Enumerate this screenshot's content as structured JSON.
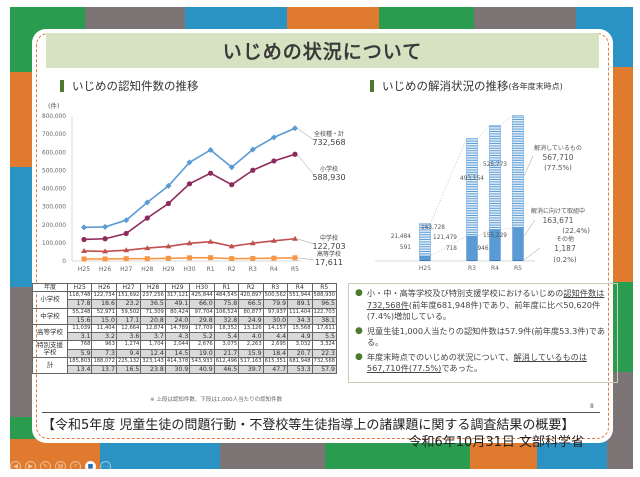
{
  "slide": {
    "title": "いじめの状況について",
    "page_number": "8",
    "colors": {
      "green": "#2a9c4f",
      "orange": "#e07a2e",
      "blue": "#2b93c4",
      "gray": "#7d7575",
      "title_bg": "#d6e3c2",
      "accent_mark": "#4e7a2e"
    }
  },
  "left_section": {
    "title": "いじめの認知件数の推移"
  },
  "right_section": {
    "title": "いじめの解消状況の推移",
    "title_suffix": "(各年度末時点)"
  },
  "chart_data": [
    {
      "type": "line",
      "title": "いじめの認知件数の推移",
      "ylabel": "(件)",
      "ylim": [
        0,
        800000
      ],
      "yticks": [
        "0",
        "100,000",
        "200,000",
        "300,000",
        "400,000",
        "500,000",
        "600,000",
        "700,000",
        "800,000"
      ],
      "ytick_values": [
        0,
        100000,
        200000,
        300000,
        400000,
        500000,
        600000,
        700000,
        800000
      ],
      "categories": [
        "H25",
        "H26",
        "H27",
        "H28",
        "H29",
        "H30",
        "R1",
        "R2",
        "R3",
        "R4",
        "R5"
      ],
      "grid": false,
      "series": [
        {
          "name": "全校種・計",
          "end_label": "732,568",
          "color": "#5b9bd5",
          "marker": "diamond",
          "values": [
            185803,
            188072,
            225132,
            323143,
            414378,
            543933,
            612496,
            517163,
            615351,
            681948,
            732568
          ]
        },
        {
          "name": "小学校",
          "end_label": "588,930",
          "color": "#8e2a5b",
          "marker": "circle",
          "values": [
            118748,
            122734,
            151692,
            237256,
            317121,
            425844,
            484545,
            420897,
            500562,
            551944,
            588930
          ]
        },
        {
          "name": "中学校",
          "end_label": "122,703",
          "color": "#c0504d",
          "marker": "triangle",
          "values": [
            55248,
            52971,
            59502,
            71309,
            80424,
            97704,
            106524,
            80877,
            97937,
            111404,
            122703
          ]
        },
        {
          "name": "高等学校",
          "end_label": "17,611",
          "color": "#f79646",
          "marker": "square",
          "values": [
            11039,
            11404,
            12664,
            12874,
            14789,
            17709,
            18352,
            13126,
            14157,
            15568,
            17611
          ]
        }
      ]
    },
    {
      "type": "bar",
      "title": "いじめの解消状況の推移(各年度末時点)",
      "categories": [
        "H25",
        "R3",
        "R4",
        "R5"
      ],
      "stacked": true,
      "series": [
        {
          "name": "その他",
          "values": [
            591,
            718,
            946,
            1187
          ]
        },
        {
          "name": "解消に向けて取組中",
          "values": [
            21484,
            121479,
            155229,
            163671
          ]
        },
        {
          "name": "解消しているもの",
          "values": [
            163728,
            493154,
            525773,
            567710
          ]
        }
      ],
      "labels": {
        "H25": {
          "resolved": "163,728",
          "in_progress": "21,484",
          "other": "591"
        },
        "R3": {
          "resolved": "493,154",
          "in_progress": "121,479",
          "other": "718"
        },
        "R4": {
          "resolved": "525,773",
          "in_progress": "155,229",
          "other": "946"
        },
        "R5_resolved": {
          "label": "解消しているもの",
          "value": "567,710",
          "pct": "(77.5%)"
        },
        "R5_in_progress": {
          "label": "解消に向けて取組中",
          "value": "163,671",
          "pct": "(22.4%)"
        },
        "R5_other": {
          "label": "その他",
          "value": "1,187",
          "pct": "(0.2%)"
        }
      }
    }
  ],
  "table": {
    "header_label": "年度",
    "years": [
      "H25",
      "H26",
      "H27",
      "H28",
      "H29",
      "H30",
      "R1",
      "R2",
      "R3",
      "R4",
      "R5"
    ],
    "rows": [
      {
        "label": "小学校",
        "counts": [
          "118,748",
          "122,734",
          "151,692",
          "237,256",
          "317,121",
          "425,844",
          "484,545",
          "420,897",
          "500,562",
          "551,944",
          "588,930"
        ],
        "rates": [
          "17.8",
          "18.6",
          "23.2",
          "36.5",
          "49.1",
          "66.0",
          "75.8",
          "66.5",
          "79.9",
          "89.1",
          "96.5"
        ]
      },
      {
        "label": "中学校",
        "counts": [
          "55,248",
          "52,971",
          "59,502",
          "71,309",
          "80,424",
          "97,704",
          "106,524",
          "80,877",
          "97,937",
          "111,404",
          "122,703"
        ],
        "rates": [
          "15.6",
          "15.0",
          "17.1",
          "20.8",
          "24.0",
          "29.8",
          "32.8",
          "24.9",
          "30.0",
          "34.3",
          "38.1"
        ]
      },
      {
        "label": "高等学校",
        "counts": [
          "11,039",
          "11,404",
          "12,664",
          "12,874",
          "14,789",
          "17,709",
          "18,352",
          "13,126",
          "14,157",
          "15,568",
          "17,611"
        ],
        "rates": [
          "3.1",
          "3.2",
          "3.6",
          "3.7",
          "4.3",
          "5.2",
          "5.4",
          "4.0",
          "4.4",
          "4.9",
          "5.5"
        ]
      },
      {
        "label": "特別支援学校",
        "label_line1": "特別支援",
        "label_line2": "学校",
        "counts": [
          "768",
          "963",
          "1,274",
          "1,704",
          "2,044",
          "2,676",
          "3,075",
          "2,263",
          "2,695",
          "3,032",
          "3,324"
        ],
        "rates": [
          "5.9",
          "7.3",
          "9.4",
          "12.4",
          "14.5",
          "19.0",
          "21.7",
          "15.9",
          "18.4",
          "20.7",
          "22.3"
        ]
      },
      {
        "label": "計",
        "counts": [
          "185,803",
          "188,072",
          "225,132",
          "323,143",
          "414,378",
          "543,933",
          "612,496",
          "517,163",
          "615,351",
          "681,948",
          "732,568"
        ],
        "rates": [
          "13.4",
          "13.7",
          "16.5",
          "23.8",
          "30.9",
          "40.9",
          "46.5",
          "39.7",
          "47.7",
          "53.3",
          "57.9"
        ]
      }
    ],
    "note": "※ 上段は認知件数、下段は1,000人当たりの認知件数"
  },
  "summary": {
    "items": [
      {
        "pre": "小・中・高等学校及び特別支援学校におけるいじめの",
        "underlined": "認知件数は732,568件",
        "post": "(前年度681,948件)であり、前年度に比べ50,620件(7.4%)増加している。"
      },
      {
        "pre": "児童生徒1,000人当たりの認知件数は57.9件(前年度53.3件)である。",
        "underlined": "",
        "post": ""
      },
      {
        "pre": "年度末時点でのいじめの状況について、",
        "underlined": "解消しているものは567,710件(77.5%)",
        "post": "であった。"
      }
    ]
  },
  "footer": {
    "line1": "【令和5年度 児童生徒の問題行動・不登校等生徒指導上の諸課題に関する調査結果の概要】",
    "line2": "令和6年10月31日 文部科学省"
  },
  "controls": [
    {
      "name": "previous",
      "icon": "◀"
    },
    {
      "name": "next",
      "icon": "▶"
    },
    {
      "name": "pen",
      "icon": "✎"
    },
    {
      "name": "slides",
      "icon": "▤"
    },
    {
      "name": "zoom",
      "icon": "⌕"
    },
    {
      "name": "camera",
      "icon": "■"
    },
    {
      "name": "more",
      "icon": "⋯"
    }
  ]
}
